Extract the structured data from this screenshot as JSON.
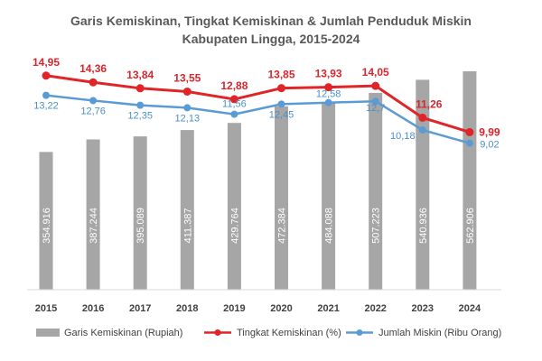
{
  "chart_data": {
    "type": "bar",
    "title_lines": [
      "Garis Kemiskinan, Tingkat Kemiskinan & Jumlah Penduduk Miskin",
      "Kabupaten Lingga, 2015-2024"
    ],
    "categories": [
      "2015",
      "2016",
      "2017",
      "2018",
      "2019",
      "2020",
      "2021",
      "2022",
      "2023",
      "2024"
    ],
    "series": [
      {
        "name": "Garis Kemiskinan (Rupiah)",
        "type": "bar",
        "color": "#a6a6a6",
        "values": [
          354916,
          387244,
          395089,
          411387,
          429764,
          472384,
          484088,
          507223,
          540936,
          562906
        ],
        "labels": [
          "354.916",
          "387.244",
          "395.089",
          "411.387",
          "429.764",
          "472.384",
          "484.088",
          "507.223",
          "540.936",
          "562.906"
        ]
      },
      {
        "name": "Tingkat Kemiskinan (%)",
        "type": "line",
        "color": "#e02428",
        "values": [
          14.95,
          14.36,
          13.84,
          13.55,
          12.88,
          13.85,
          13.93,
          14.05,
          11.26,
          9.99
        ],
        "labels": [
          "14,95",
          "14,36",
          "13,84",
          "13,55",
          "12,88",
          "13,85",
          "13,93",
          "14,05",
          "11,26",
          "9,99"
        ]
      },
      {
        "name": "Jumlah Miskin (Ribu Orang)",
        "type": "line",
        "color": "#5b9bd5",
        "values": [
          13.22,
          12.76,
          12.35,
          12.13,
          11.56,
          12.45,
          12.58,
          12.7,
          10.18,
          9.02
        ],
        "labels": [
          "13,22",
          "12,76",
          "12,35",
          "12,13",
          "11,56",
          "12,45",
          "12,58",
          "12,7",
          "10,18",
          "9,02"
        ]
      }
    ],
    "legend_position": "bottom",
    "grid": false
  }
}
